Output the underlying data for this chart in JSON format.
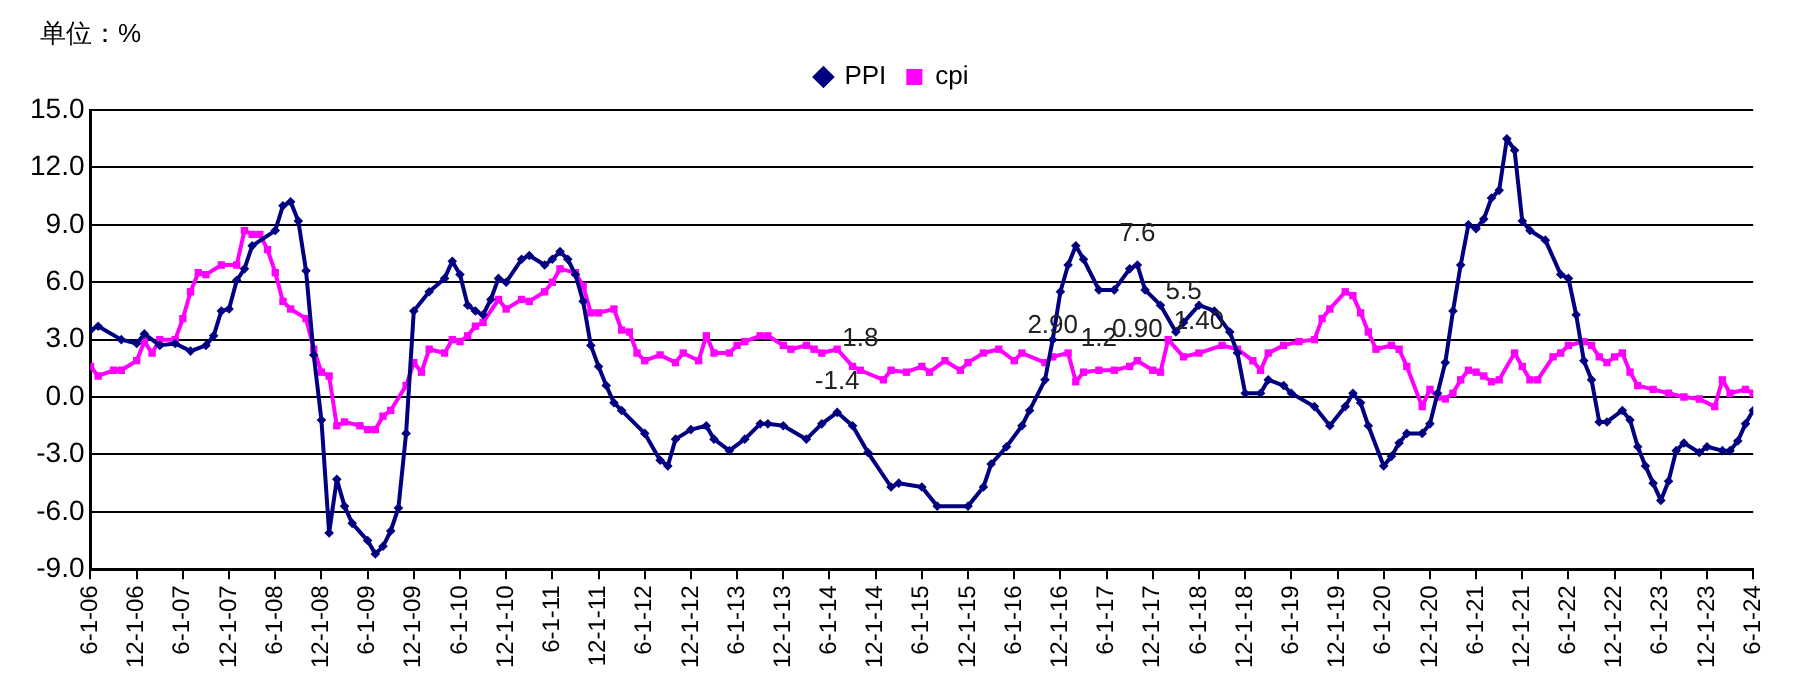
{
  "chart_data": {
    "type": "line",
    "ylabel": "单位：%",
    "xlim": [
      "2006-06",
      "2024-06"
    ],
    "xticks": [
      {
        "value": "2006-06",
        "label": "6-1-06"
      },
      {
        "value": "2006-12",
        "label": "12-1-06"
      },
      {
        "value": "2007-06",
        "label": "6-1-07"
      },
      {
        "value": "2007-12",
        "label": "12-1-07"
      },
      {
        "value": "2008-06",
        "label": "6-1-08"
      },
      {
        "value": "2008-12",
        "label": "12-1-08"
      },
      {
        "value": "2009-06",
        "label": "6-1-09"
      },
      {
        "value": "2009-12",
        "label": "12-1-09"
      },
      {
        "value": "2010-06",
        "label": "6-1-10"
      },
      {
        "value": "2010-12",
        "label": "12-1-10"
      },
      {
        "value": "2011-06",
        "label": "6-1-11"
      },
      {
        "value": "2011-12",
        "label": "12-1-11"
      },
      {
        "value": "2012-06",
        "label": "6-1-12"
      },
      {
        "value": "2012-12",
        "label": "12-1-12"
      },
      {
        "value": "2013-06",
        "label": "6-1-13"
      },
      {
        "value": "2013-12",
        "label": "12-1-13"
      },
      {
        "value": "2014-06",
        "label": "6-1-14"
      },
      {
        "value": "2014-12",
        "label": "12-1-14"
      },
      {
        "value": "2015-06",
        "label": "6-1-15"
      },
      {
        "value": "2015-12",
        "label": "12-1-15"
      },
      {
        "value": "2016-06",
        "label": "6-1-16"
      },
      {
        "value": "2016-12",
        "label": "12-1-16"
      },
      {
        "value": "2017-06",
        "label": "6-1-17"
      },
      {
        "value": "2017-12",
        "label": "12-1-17"
      },
      {
        "value": "2018-06",
        "label": "6-1-18"
      },
      {
        "value": "2018-12",
        "label": "12-1-18"
      },
      {
        "value": "2019-06",
        "label": "6-1-19"
      },
      {
        "value": "2019-12",
        "label": "12-1-19"
      },
      {
        "value": "2020-06",
        "label": "6-1-20"
      },
      {
        "value": "2020-12",
        "label": "12-1-20"
      },
      {
        "value": "2021-06",
        "label": "6-1-21"
      },
      {
        "value": "2021-12",
        "label": "12-1-21"
      },
      {
        "value": "2022-06",
        "label": "6-1-22"
      },
      {
        "value": "2022-12",
        "label": "12-1-22"
      },
      {
        "value": "2023-06",
        "label": "6-1-23"
      },
      {
        "value": "2023-12",
        "label": "12-1-23"
      },
      {
        "value": "2024-06",
        "label": "6-1-24"
      }
    ],
    "ylim": [
      -9,
      15
    ],
    "yticks": [
      {
        "value": -9,
        "label": "-9.0"
      },
      {
        "value": -6,
        "label": "-6.0"
      },
      {
        "value": -3,
        "label": "-3.0"
      },
      {
        "value": 0,
        "label": "0.0"
      },
      {
        "value": 3,
        "label": "3.0"
      },
      {
        "value": 6,
        "label": "6.0"
      },
      {
        "value": 9,
        "label": "9.0"
      },
      {
        "value": 12,
        "label": "12.0"
      },
      {
        "value": 15,
        "label": "15.0"
      }
    ],
    "grid": "y",
    "legend": "top",
    "series": [
      {
        "name": "PPI",
        "color": "#000080",
        "marker": "diamond",
        "x": [
          "2006-06",
          "2006-07",
          "2006-10",
          "2006-12",
          "2007-01",
          "2007-03",
          "2007-05",
          "2007-07",
          "2007-09",
          "2007-10",
          "2007-11",
          "2007-12",
          "2008-01",
          "2008-02",
          "2008-03",
          "2008-06",
          "2008-07",
          "2008-08",
          "2008-09",
          "2008-10",
          "2008-11",
          "2008-12",
          "2009-01",
          "2009-02",
          "2009-03",
          "2009-04",
          "2009-06",
          "2009-07",
          "2009-08",
          "2009-09",
          "2009-10",
          "2009-11",
          "2009-12",
          "2010-02",
          "2010-04",
          "2010-05",
          "2010-06",
          "2010-07",
          "2010-08",
          "2010-09",
          "2010-10",
          "2010-11",
          "2010-12",
          "2011-02",
          "2011-03",
          "2011-05",
          "2011-06",
          "2011-07",
          "2011-08",
          "2011-09",
          "2011-10",
          "2011-11",
          "2011-12",
          "2012-01",
          "2012-02",
          "2012-03",
          "2012-06",
          "2012-08",
          "2012-09",
          "2012-10",
          "2012-12",
          "2013-02",
          "2013-03",
          "2013-05",
          "2013-07",
          "2013-09",
          "2013-10",
          "2013-12",
          "2014-03",
          "2014-05",
          "2014-07",
          "2014-09",
          "2014-11",
          "2015-02",
          "2015-03",
          "2015-06",
          "2015-08",
          "2015-12",
          "2016-02",
          "2016-03",
          "2016-05",
          "2016-07",
          "2016-08",
          "2016-10",
          "2016-11",
          "2016-12",
          "2017-01",
          "2017-02",
          "2017-03",
          "2017-05",
          "2017-07",
          "2017-09",
          "2017-10",
          "2017-11",
          "2018-01",
          "2018-03",
          "2018-04",
          "2018-06",
          "2018-08",
          "2018-10",
          "2018-11",
          "2018-12",
          "2019-02",
          "2019-03",
          "2019-05",
          "2019-06",
          "2019-09",
          "2019-11",
          "2020-01",
          "2020-02",
          "2020-03",
          "2020-04",
          "2020-06",
          "2020-07",
          "2020-08",
          "2020-09",
          "2020-11",
          "2020-12",
          "2021-01",
          "2021-02",
          "2021-03",
          "2021-04",
          "2021-05",
          "2021-06",
          "2021-07",
          "2021-08",
          "2021-09",
          "2021-10",
          "2021-11",
          "2021-12",
          "2022-01",
          "2022-03",
          "2022-05",
          "2022-06",
          "2022-07",
          "2022-08",
          "2022-09",
          "2022-10",
          "2022-11",
          "2023-01",
          "2023-02",
          "2023-03",
          "2023-04",
          "2023-05",
          "2023-06",
          "2023-07",
          "2023-08",
          "2023-09",
          "2023-11",
          "2023-12",
          "2024-02",
          "2024-03",
          "2024-04",
          "2024-05",
          "2024-06"
        ],
        "values": [
          3.5,
          3.7,
          3.0,
          2.8,
          3.3,
          2.7,
          2.8,
          2.4,
          2.7,
          3.2,
          4.5,
          4.6,
          6.1,
          6.7,
          7.9,
          8.7,
          10.0,
          10.2,
          9.2,
          6.6,
          2.2,
          -1.2,
          -7.1,
          -4.3,
          -5.7,
          -6.6,
          -7.5,
          -8.2,
          -7.8,
          -7.0,
          -5.8,
          -1.9,
          4.5,
          5.5,
          6.2,
          7.1,
          6.4,
          4.8,
          4.5,
          4.3,
          5.1,
          6.2,
          6.0,
          7.2,
          7.4,
          6.9,
          7.2,
          7.6,
          7.2,
          6.4,
          5.0,
          2.7,
          1.6,
          0.6,
          -0.3,
          -0.7,
          -1.9,
          -3.3,
          -3.6,
          -2.2,
          -1.7,
          -1.5,
          -2.2,
          -2.8,
          -2.2,
          -1.4,
          -1.4,
          -1.5,
          -2.2,
          -1.4,
          -0.8,
          -1.5,
          -2.9,
          -4.7,
          -4.5,
          -4.7,
          -5.7,
          -5.7,
          -4.7,
          -3.5,
          -2.6,
          -1.5,
          -0.7,
          0.9,
          3.0,
          5.5,
          6.9,
          7.9,
          7.2,
          5.6,
          5.6,
          6.7,
          6.9,
          5.6,
          4.8,
          3.4,
          3.9,
          4.8,
          4.5,
          3.4,
          2.3,
          0.2,
          0.2,
          0.9,
          0.6,
          0.2,
          -0.5,
          -1.5,
          -0.5,
          0.2,
          -0.3,
          -1.5,
          -3.6,
          -3.1,
          -2.4,
          -1.9,
          -1.9,
          -1.4,
          0.2,
          1.8,
          4.5,
          6.9,
          9.0,
          8.8,
          9.3,
          10.4,
          10.8,
          13.5,
          12.9,
          9.2,
          8.7,
          8.2,
          6.4,
          6.2,
          4.3,
          1.9,
          0.9,
          -1.3,
          -1.3,
          -0.7,
          -1.2,
          -2.6,
          -3.6,
          -4.5,
          -5.4,
          -4.4,
          -2.8,
          -2.4,
          -2.9,
          -2.6,
          -2.8,
          -2.8,
          -2.3,
          -1.4,
          -0.7
        ]
      },
      {
        "name": "cpi",
        "color": "#ff00ff",
        "marker": "square",
        "x": [
          "2006-06",
          "2006-07",
          "2006-09",
          "2006-10",
          "2006-12",
          "2007-01",
          "2007-02",
          "2007-03",
          "2007-05",
          "2007-06",
          "2007-07",
          "2007-08",
          "2007-09",
          "2007-11",
          "2008-01",
          "2008-02",
          "2008-03",
          "2008-04",
          "2008-05",
          "2008-06",
          "2008-07",
          "2008-08",
          "2008-10",
          "2008-11",
          "2008-12",
          "2009-01",
          "2009-02",
          "2009-03",
          "2009-05",
          "2009-06",
          "2009-07",
          "2009-08",
          "2009-09",
          "2009-11",
          "2009-12",
          "2010-01",
          "2010-02",
          "2010-04",
          "2010-05",
          "2010-06",
          "2010-07",
          "2010-08",
          "2010-09",
          "2010-11",
          "2010-12",
          "2011-02",
          "2011-03",
          "2011-05",
          "2011-06",
          "2011-07",
          "2011-09",
          "2011-10",
          "2011-11",
          "2011-12",
          "2012-02",
          "2012-03",
          "2012-04",
          "2012-05",
          "2012-06",
          "2012-08",
          "2012-10",
          "2012-11",
          "2013-01",
          "2013-02",
          "2013-03",
          "2013-05",
          "2013-06",
          "2013-07",
          "2013-09",
          "2013-10",
          "2013-12",
          "2014-01",
          "2014-03",
          "2014-04",
          "2014-05",
          "2014-07",
          "2014-09",
          "2014-10",
          "2015-01",
          "2015-02",
          "2015-04",
          "2015-06",
          "2015-07",
          "2015-09",
          "2015-11",
          "2015-12",
          "2016-02",
          "2016-04",
          "2016-06",
          "2016-07",
          "2016-10",
          "2016-11",
          "2017-01",
          "2017-02",
          "2017-03",
          "2017-05",
          "2017-07",
          "2017-09",
          "2017-10",
          "2017-12",
          "2018-01",
          "2018-02",
          "2018-04",
          "2018-06",
          "2018-09",
          "2018-11",
          "2019-01",
          "2019-02",
          "2019-03",
          "2019-05",
          "2019-07",
          "2019-09",
          "2019-10",
          "2019-11",
          "2020-01",
          "2020-02",
          "2020-03",
          "2020-04",
          "2020-05",
          "2020-07",
          "2020-08",
          "2020-09",
          "2020-11",
          "2020-12",
          "2021-01",
          "2021-02",
          "2021-03",
          "2021-04",
          "2021-05",
          "2021-06",
          "2021-07",
          "2021-08",
          "2021-09",
          "2021-11",
          "2021-12",
          "2022-01",
          "2022-02",
          "2022-04",
          "2022-05",
          "2022-06",
          "2022-08",
          "2022-09",
          "2022-10",
          "2022-11",
          "2022-12",
          "2023-01",
          "2023-02",
          "2023-03",
          "2023-05",
          "2023-07",
          "2023-09",
          "2023-11",
          "2024-01",
          "2024-02",
          "2024-03",
          "2024-05",
          "2024-06"
        ],
        "values": [
          1.6,
          1.1,
          1.4,
          1.4,
          1.9,
          2.9,
          2.3,
          3.0,
          3.0,
          4.1,
          5.5,
          6.5,
          6.4,
          6.9,
          6.9,
          8.7,
          8.5,
          8.5,
          7.7,
          6.5,
          5.0,
          4.6,
          4.1,
          2.5,
          1.3,
          1.1,
          -1.5,
          -1.3,
          -1.5,
          -1.7,
          -1.7,
          -1.0,
          -0.7,
          0.6,
          1.8,
          1.3,
          2.5,
          2.3,
          3.0,
          2.9,
          3.2,
          3.7,
          3.9,
          5.1,
          4.6,
          5.1,
          5.0,
          5.5,
          6.0,
          6.7,
          6.5,
          5.8,
          4.4,
          4.4,
          4.6,
          3.5,
          3.4,
          2.3,
          1.9,
          2.2,
          1.8,
          2.3,
          1.9,
          3.2,
          2.3,
          2.3,
          2.7,
          2.9,
          3.2,
          3.2,
          2.7,
          2.5,
          2.7,
          2.5,
          2.3,
          2.5,
          1.6,
          1.4,
          0.9,
          1.4,
          1.3,
          1.6,
          1.3,
          1.9,
          1.4,
          1.8,
          2.3,
          2.5,
          1.9,
          2.3,
          1.8,
          2.1,
          2.3,
          0.8,
          1.3,
          1.4,
          1.4,
          1.6,
          1.9,
          1.4,
          1.3,
          3.0,
          2.1,
          2.3,
          2.7,
          2.5,
          1.9,
          1.4,
          2.3,
          2.7,
          2.9,
          3.0,
          4.1,
          4.6,
          5.5,
          5.3,
          4.4,
          3.4,
          2.5,
          2.7,
          2.5,
          1.6,
          -0.5,
          0.4,
          0.0,
          -0.1,
          0.2,
          0.9,
          1.4,
          1.3,
          1.1,
          0.8,
          0.9,
          2.3,
          1.6,
          0.9,
          0.9,
          2.1,
          2.3,
          2.7,
          2.9,
          2.7,
          2.1,
          1.8,
          2.1,
          2.3,
          1.3,
          0.6,
          0.4,
          0.2,
          0.0,
          -0.1,
          -0.5,
          0.9,
          0.2,
          0.4,
          0.2
        ]
      }
    ],
    "annotations": [
      {
        "text": "7.6",
        "x": "2017-10",
        "y": 6.9
      },
      {
        "text": "5.5",
        "x": "2018-04",
        "y": 3.9
      },
      {
        "text": "-1.4",
        "x": "2014-07",
        "y": -0.8
      },
      {
        "text": "1.8",
        "x": "2014-10",
        "y": 1.4
      },
      {
        "text": "2.90",
        "x": "2016-11",
        "y": 2.1
      },
      {
        "text": "1.2",
        "x": "2017-05",
        "y": 1.4
      },
      {
        "text": "0.90",
        "x": "2017-10",
        "y": 1.9
      },
      {
        "text": "1.40",
        "x": "2018-06",
        "y": 2.3
      }
    ]
  }
}
